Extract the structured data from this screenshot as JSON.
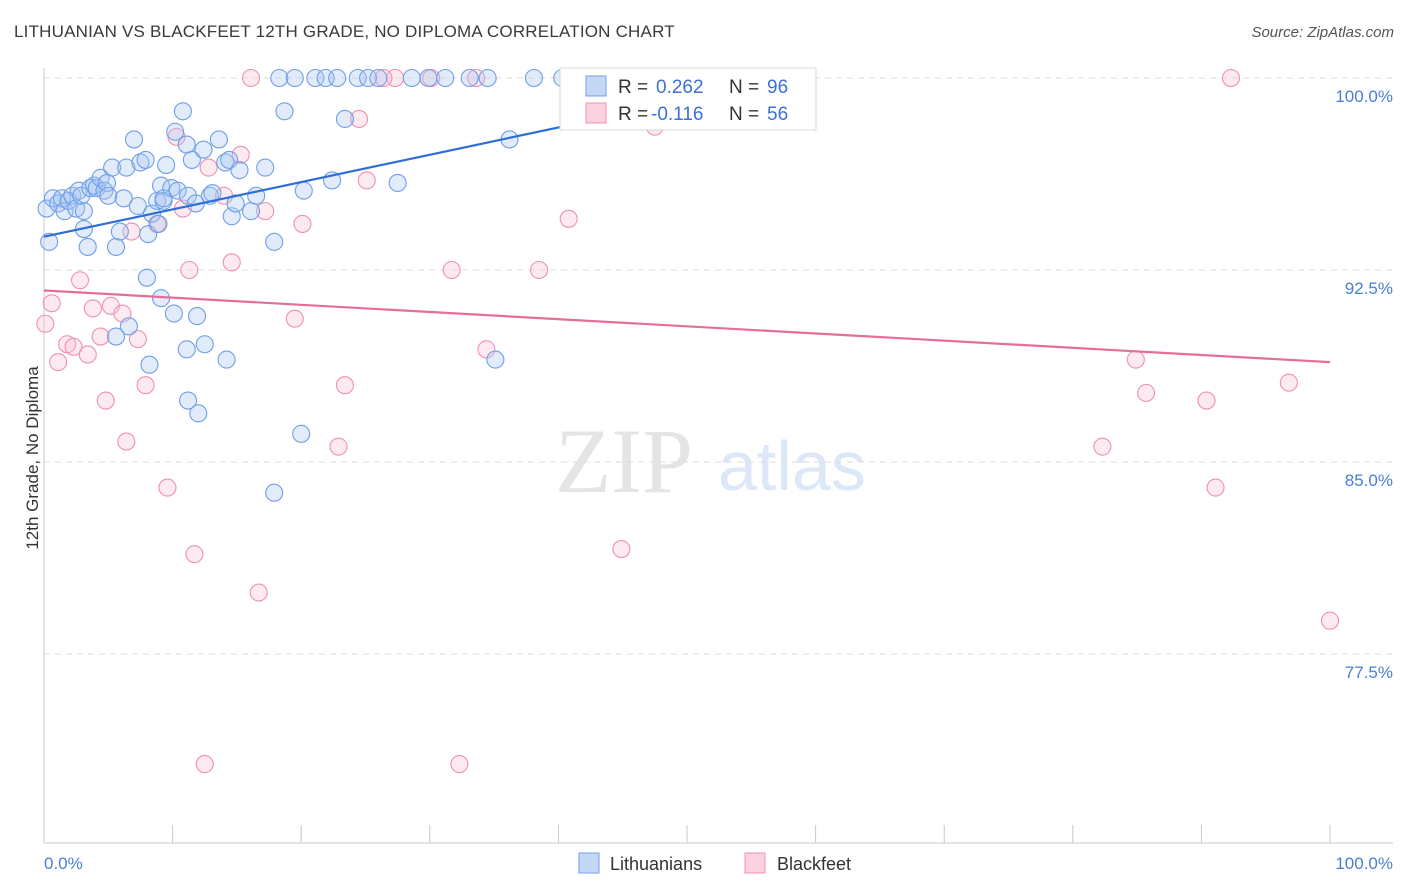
{
  "title": "LITHUANIAN VS BLACKFEET 12TH GRADE, NO DIPLOMA CORRELATION CHART",
  "source": "Source: ZipAtlas.com",
  "watermark": {
    "zip": "ZIP",
    "atlas": "atlas"
  },
  "colors": {
    "blue": "#6f9fe8",
    "blue_line": "#2f6fd4",
    "pink": "#f090b0",
    "pink_line": "#e56d97",
    "tick_text": "#4a7fd4",
    "grid": "#dddddd"
  },
  "stats": [
    {
      "r_label": "R = ",
      "r_value": "0.262",
      "n_label": "N = ",
      "n_value": "96"
    },
    {
      "r_label": "R = ",
      "r_value": "-0.116",
      "n_label": "N = ",
      "n_value": "56"
    }
  ],
  "chart_data": {
    "type": "scatter",
    "title": "LITHUANIAN VS BLACKFEET 12TH GRADE, NO DIPLOMA CORRELATION CHART",
    "xlabel": "",
    "ylabel": "12th Grade, No Diploma",
    "xlim": [
      0,
      100
    ],
    "ylim": [
      70.8,
      101.0
    ],
    "x_tick_labels": [
      "0.0%",
      "100.0%"
    ],
    "y_ticks": [
      {
        "value": 100.0,
        "label": "100.0%"
      },
      {
        "value": 92.5,
        "label": "92.5%"
      },
      {
        "value": 85.0,
        "label": "85.0%"
      },
      {
        "value": 77.5,
        "label": "77.5%"
      }
    ],
    "grid": true,
    "legend_position": "bottom-center",
    "series": [
      {
        "name": "Lithuanians",
        "color": "#6f9fe8",
        "trend": {
          "x": [
            0,
            40.3
          ],
          "y": [
            93.8,
            98.1
          ]
        },
        "points": [
          [
            0.2,
            94.9
          ],
          [
            0.4,
            93.6
          ],
          [
            0.7,
            95.3
          ],
          [
            1.1,
            95.1
          ],
          [
            1.4,
            95.3
          ],
          [
            1.6,
            94.8
          ],
          [
            1.9,
            95.2
          ],
          [
            2.2,
            95.4
          ],
          [
            2.5,
            94.9
          ],
          [
            2.7,
            95.6
          ],
          [
            2.9,
            95.4
          ],
          [
            3.1,
            94.1
          ],
          [
            3.1,
            94.8
          ],
          [
            3.4,
            93.4
          ],
          [
            3.6,
            95.7
          ],
          [
            3.9,
            95.8
          ],
          [
            4.1,
            95.7
          ],
          [
            4.4,
            96.1
          ],
          [
            4.7,
            95.6
          ],
          [
            4.9,
            95.9
          ],
          [
            5.0,
            95.4
          ],
          [
            5.3,
            96.5
          ],
          [
            5.6,
            93.4
          ],
          [
            5.9,
            94.0
          ],
          [
            6.2,
            95.3
          ],
          [
            6.4,
            96.5
          ],
          [
            7.0,
            97.6
          ],
          [
            7.3,
            95.0
          ],
          [
            7.5,
            96.7
          ],
          [
            7.9,
            96.8
          ],
          [
            8.1,
            93.9
          ],
          [
            8.4,
            94.7
          ],
          [
            8.8,
            95.2
          ],
          [
            8.9,
            94.3
          ],
          [
            9.1,
            95.8
          ],
          [
            9.3,
            95.2
          ],
          [
            9.3,
            95.3
          ],
          [
            9.5,
            96.6
          ],
          [
            9.9,
            95.7
          ],
          [
            10.2,
            97.9
          ],
          [
            10.4,
            95.6
          ],
          [
            10.8,
            98.7
          ],
          [
            11.1,
            97.4
          ],
          [
            11.2,
            95.4
          ],
          [
            11.5,
            96.8
          ],
          [
            11.8,
            95.1
          ],
          [
            12.4,
            97.2
          ],
          [
            12.9,
            95.4
          ],
          [
            13.1,
            95.5
          ],
          [
            13.6,
            97.6
          ],
          [
            14.1,
            96.7
          ],
          [
            14.4,
            96.8
          ],
          [
            14.6,
            94.6
          ],
          [
            14.9,
            95.1
          ],
          [
            15.2,
            96.4
          ],
          [
            16.1,
            94.8
          ],
          [
            16.5,
            95.4
          ],
          [
            17.2,
            96.5
          ],
          [
            17.9,
            93.6
          ],
          [
            18.3,
            100.0
          ],
          [
            18.7,
            98.7
          ],
          [
            19.5,
            100.0
          ],
          [
            20.2,
            95.6
          ],
          [
            21.1,
            100.0
          ],
          [
            21.9,
            100.0
          ],
          [
            22.4,
            96.0
          ],
          [
            22.8,
            100.0
          ],
          [
            23.4,
            98.4
          ],
          [
            24.4,
            100.0
          ],
          [
            25.2,
            100.0
          ],
          [
            26.0,
            100.0
          ],
          [
            27.5,
            95.9
          ],
          [
            28.6,
            100.0
          ],
          [
            29.9,
            100.0
          ],
          [
            31.2,
            100.0
          ],
          [
            33.1,
            100.0
          ],
          [
            34.5,
            100.0
          ],
          [
            36.2,
            97.6
          ],
          [
            38.1,
            100.0
          ],
          [
            40.3,
            100.0
          ],
          [
            41.6,
            100.0
          ],
          [
            8.0,
            92.2
          ],
          [
            9.1,
            91.4
          ],
          [
            6.6,
            90.3
          ],
          [
            5.6,
            89.9
          ],
          [
            10.1,
            90.8
          ],
          [
            11.1,
            89.4
          ],
          [
            11.9,
            90.7
          ],
          [
            12.5,
            89.6
          ],
          [
            14.2,
            89.0
          ],
          [
            8.2,
            88.8
          ],
          [
            11.2,
            87.4
          ],
          [
            12.0,
            86.9
          ],
          [
            20.0,
            86.1
          ],
          [
            17.9,
            83.8
          ],
          [
            35.1,
            89.0
          ]
        ]
      },
      {
        "name": "Blackfeet",
        "color": "#f090b0",
        "trend": {
          "x": [
            0,
            100
          ],
          "y": [
            91.7,
            88.9
          ]
        },
        "points": [
          [
            0.1,
            90.4
          ],
          [
            0.6,
            91.2
          ],
          [
            1.1,
            88.9
          ],
          [
            1.8,
            89.6
          ],
          [
            2.3,
            89.5
          ],
          [
            2.8,
            92.1
          ],
          [
            3.4,
            89.2
          ],
          [
            3.8,
            91.0
          ],
          [
            4.4,
            89.9
          ],
          [
            4.8,
            87.4
          ],
          [
            5.2,
            91.1
          ],
          [
            6.1,
            90.8
          ],
          [
            6.4,
            85.8
          ],
          [
            6.8,
            94.0
          ],
          [
            7.3,
            89.8
          ],
          [
            7.9,
            88.0
          ],
          [
            8.8,
            94.3
          ],
          [
            9.6,
            84.0
          ],
          [
            10.3,
            97.7
          ],
          [
            10.8,
            94.9
          ],
          [
            11.3,
            92.5
          ],
          [
            11.7,
            81.4
          ],
          [
            12.8,
            96.5
          ],
          [
            14.0,
            95.4
          ],
          [
            14.6,
            92.8
          ],
          [
            15.3,
            97.0
          ],
          [
            16.7,
            79.9
          ],
          [
            17.2,
            94.8
          ],
          [
            19.5,
            90.6
          ],
          [
            20.1,
            94.3
          ],
          [
            22.9,
            85.6
          ],
          [
            23.4,
            88.0
          ],
          [
            24.5,
            98.4
          ],
          [
            25.1,
            96.0
          ],
          [
            27.3,
            100.0
          ],
          [
            30.1,
            100.0
          ],
          [
            31.7,
            92.5
          ],
          [
            32.3,
            73.2
          ],
          [
            34.4,
            89.4
          ],
          [
            38.5,
            92.5
          ],
          [
            40.8,
            94.5
          ],
          [
            44.9,
            81.6
          ],
          [
            46.3,
            100.0
          ],
          [
            16.1,
            100.0
          ],
          [
            26.4,
            100.0
          ],
          [
            47.5,
            98.1
          ],
          [
            84.9,
            89.0
          ],
          [
            85.7,
            87.7
          ],
          [
            82.3,
            85.6
          ],
          [
            90.4,
            87.4
          ],
          [
            91.1,
            84.0
          ],
          [
            92.3,
            100.0
          ],
          [
            96.8,
            88.1
          ],
          [
            100.0,
            78.8
          ],
          [
            33.6,
            100.0
          ],
          [
            12.5,
            73.2
          ]
        ]
      }
    ]
  }
}
